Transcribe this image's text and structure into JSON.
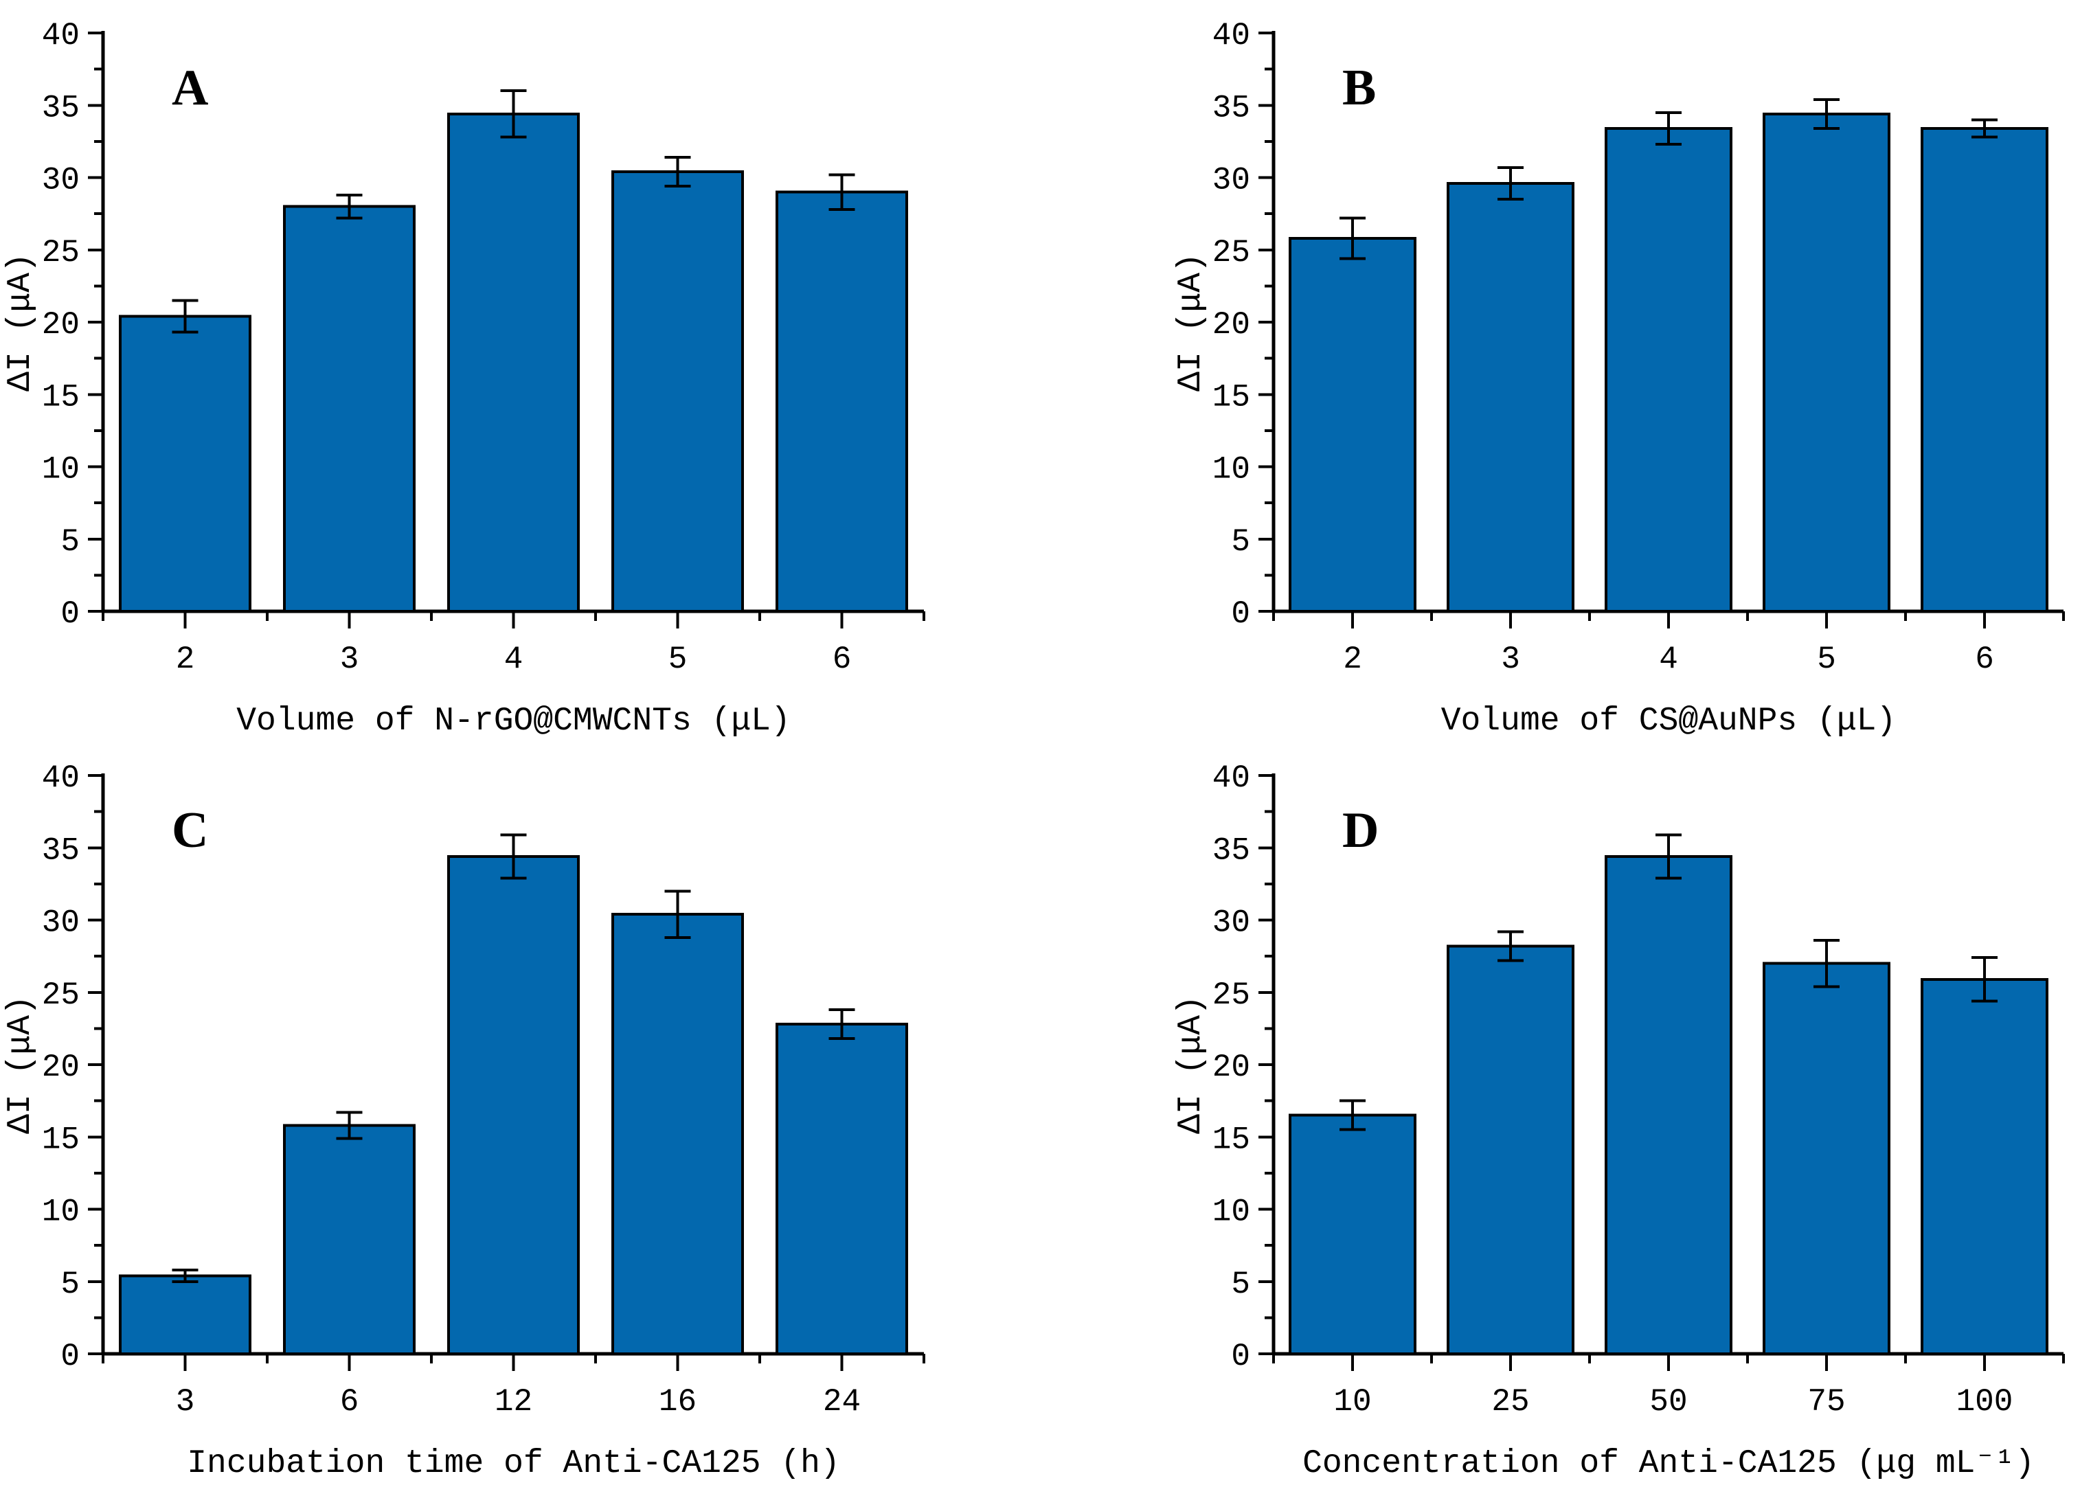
{
  "figure": {
    "background": "#FFFFFF",
    "bar_fill": "#0368AE",
    "bar_edge": "#000000",
    "axis_color": "#000000",
    "error_bar_color": "#000000"
  },
  "chart_data": [
    {
      "type": "bar",
      "panel_label": "A",
      "title": "",
      "xlabel": "Volume of N-rGO@CMWCNTs (μL)",
      "ylabel": "ΔI (μA)",
      "categories": [
        "2",
        "3",
        "4",
        "5",
        "6"
      ],
      "values": [
        20.4,
        28.0,
        34.4,
        30.4,
        29.0
      ],
      "errors": [
        1.1,
        0.8,
        1.6,
        1.0,
        1.2
      ],
      "ylim": [
        0,
        40
      ],
      "ytick_step": 5,
      "yminor_step": 2.5,
      "ytick_labels": [
        "0",
        "5",
        "10",
        "15",
        "20",
        "25",
        "30",
        "35",
        "40"
      ],
      "grid": false,
      "legend_position": "none"
    },
    {
      "type": "bar",
      "panel_label": "B",
      "title": "",
      "xlabel": "Volume of CS@AuNPs (μL)",
      "ylabel": "ΔI (μA)",
      "categories": [
        "2",
        "3",
        "4",
        "5",
        "6"
      ],
      "values": [
        25.8,
        29.6,
        33.4,
        34.4,
        33.4
      ],
      "errors": [
        1.4,
        1.1,
        1.1,
        1.0,
        0.6
      ],
      "ylim": [
        0,
        40
      ],
      "ytick_step": 5,
      "yminor_step": 2.5,
      "ytick_labels": [
        "0",
        "5",
        "10",
        "15",
        "20",
        "25",
        "30",
        "35",
        "40"
      ],
      "grid": false,
      "legend_position": "none"
    },
    {
      "type": "bar",
      "panel_label": "C",
      "title": "",
      "xlabel": "Incubation time of Anti-CA125 (h)",
      "ylabel": "ΔI (μA)",
      "categories": [
        "3",
        "6",
        "12",
        "16",
        "24"
      ],
      "values": [
        5.4,
        15.8,
        34.4,
        30.4,
        22.8
      ],
      "errors": [
        0.4,
        0.9,
        1.5,
        1.6,
        1.0
      ],
      "ylim": [
        0,
        40
      ],
      "ytick_step": 5,
      "yminor_step": 2.5,
      "ytick_labels": [
        "0",
        "5",
        "10",
        "15",
        "20",
        "25",
        "30",
        "35",
        "40"
      ],
      "grid": false,
      "legend_position": "none"
    },
    {
      "type": "bar",
      "panel_label": "D",
      "title": "",
      "xlabel": "Concentration of Anti-CA125 (μg mL⁻¹)",
      "ylabel": "ΔI (μA)",
      "categories": [
        "10",
        "25",
        "50",
        "75",
        "100"
      ],
      "values": [
        16.5,
        28.2,
        34.4,
        27.0,
        25.9
      ],
      "errors": [
        1.0,
        1.0,
        1.5,
        1.6,
        1.5
      ],
      "ylim": [
        0,
        40
      ],
      "ytick_step": 5,
      "yminor_step": 2.5,
      "ytick_labels": [
        "0",
        "5",
        "10",
        "15",
        "20",
        "25",
        "30",
        "35",
        "40"
      ],
      "grid": false,
      "legend_position": "none"
    }
  ]
}
